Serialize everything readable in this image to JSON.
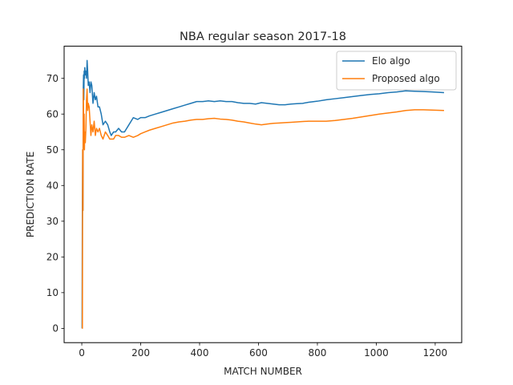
{
  "chart_data": {
    "type": "line",
    "title": "NBA regular season 2017-18",
    "xlabel": "MATCH NUMBER",
    "ylabel": "PREDICTION RATE",
    "xlim": [
      -60,
      1290
    ],
    "ylim": [
      -4,
      79
    ],
    "xticks": [
      0,
      200,
      400,
      600,
      800,
      1000,
      1200
    ],
    "yticks": [
      0,
      10,
      20,
      30,
      40,
      50,
      60,
      70
    ],
    "grid": false,
    "legend": "top-right",
    "series": [
      {
        "name": "Elo algo",
        "color": "#1f77b4",
        "x": [
          1,
          2,
          3,
          4,
          5,
          6,
          7,
          8,
          9,
          10,
          12,
          14,
          16,
          18,
          20,
          22,
          25,
          28,
          31,
          34,
          38,
          42,
          46,
          50,
          55,
          60,
          66,
          72,
          80,
          88,
          95,
          100,
          108,
          115,
          125,
          135,
          145,
          160,
          175,
          190,
          200,
          215,
          230,
          250,
          270,
          290,
          310,
          330,
          350,
          370,
          390,
          410,
          430,
          450,
          470,
          490,
          510,
          530,
          550,
          570,
          590,
          610,
          630,
          650,
          670,
          690,
          710,
          730,
          750,
          770,
          800,
          830,
          860,
          890,
          920,
          950,
          980,
          1010,
          1040,
          1070,
          1100,
          1130,
          1160,
          1190,
          1230
        ],
        "values": [
          0,
          35,
          50,
          33,
          67,
          71,
          64,
          72,
          70,
          73,
          71,
          72,
          70,
          75,
          72,
          68,
          69,
          66,
          69,
          68,
          63,
          66,
          64,
          65,
          62,
          62,
          60,
          57,
          58,
          57,
          55,
          54,
          55,
          55,
          56,
          55,
          55,
          57,
          59,
          58.5,
          59,
          59,
          59.5,
          60,
          60.5,
          61,
          61.5,
          62,
          62.5,
          63,
          63.5,
          63.5,
          63.7,
          63.5,
          63.7,
          63.5,
          63.5,
          63.2,
          63,
          63,
          62.8,
          63.2,
          63,
          62.8,
          62.6,
          62.6,
          62.8,
          62.9,
          63,
          63.3,
          63.6,
          64,
          64.3,
          64.6,
          64.9,
          65.2,
          65.5,
          65.7,
          66,
          66.2,
          66.5,
          66.4,
          66.3,
          66.2,
          66
        ]
      },
      {
        "name": "Proposed algo",
        "color": "#ff7f0e",
        "x": [
          1,
          2,
          3,
          4,
          5,
          6,
          7,
          8,
          9,
          10,
          12,
          14,
          16,
          18,
          20,
          22,
          25,
          28,
          31,
          34,
          38,
          42,
          46,
          50,
          55,
          60,
          66,
          72,
          80,
          88,
          95,
          100,
          108,
          115,
          125,
          135,
          145,
          160,
          175,
          190,
          200,
          215,
          230,
          250,
          270,
          290,
          310,
          330,
          350,
          370,
          390,
          410,
          430,
          450,
          470,
          490,
          510,
          530,
          550,
          570,
          590,
          610,
          630,
          650,
          670,
          690,
          710,
          730,
          750,
          770,
          800,
          830,
          860,
          890,
          920,
          950,
          980,
          1010,
          1040,
          1070,
          1100,
          1130,
          1160,
          1190,
          1230
        ],
        "values": [
          0,
          0,
          50,
          33,
          67,
          60,
          55,
          60,
          50,
          55,
          52,
          56,
          64,
          67,
          61,
          63,
          62,
          58,
          54,
          57,
          55,
          58,
          54,
          56,
          55,
          56,
          54,
          53,
          55,
          54,
          53,
          53,
          53,
          54,
          54,
          53.5,
          53.5,
          54,
          53.5,
          54,
          54.5,
          55,
          55.5,
          56,
          56.5,
          57,
          57.5,
          57.8,
          58,
          58.3,
          58.5,
          58.5,
          58.7,
          58.8,
          58.6,
          58.5,
          58.3,
          58,
          57.8,
          57.5,
          57.2,
          57,
          57.2,
          57.4,
          57.5,
          57.6,
          57.7,
          57.8,
          57.9,
          58,
          58,
          58,
          58.2,
          58.5,
          58.8,
          59.2,
          59.6,
          60,
          60.3,
          60.6,
          61,
          61.2,
          61.2,
          61.1,
          61
        ]
      }
    ]
  }
}
